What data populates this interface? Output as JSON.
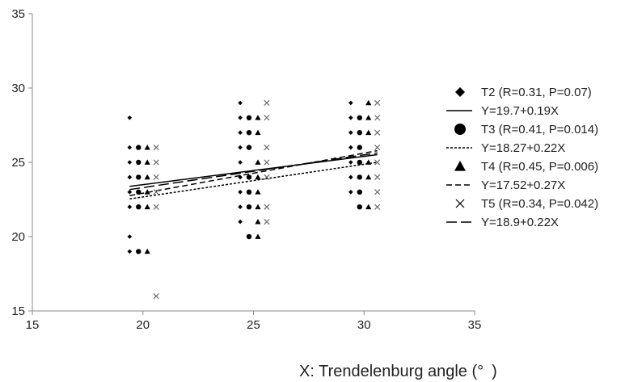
{
  "chart_data": {
    "type": "scatter",
    "title": "",
    "xlabel": "X: Trendelenburg angle (° )",
    "ylabel": "",
    "xlim": [
      15,
      35
    ],
    "ylim": [
      15,
      35
    ],
    "x_ticks": [
      "15",
      "20",
      "25",
      "30",
      "35"
    ],
    "y_ticks": [
      "15",
      "20",
      "25",
      "30",
      "35"
    ],
    "grid": false,
    "legend_position": "right",
    "marker_color": "#000000",
    "x5_marker_color": "#6b6b6b",
    "series": [
      {
        "name": "T2 (R=0.31, P=0.07)",
        "marker": "diamond",
        "x_offset": -0.6,
        "points": [
          [
            20,
            28
          ],
          [
            20,
            26
          ],
          [
            20,
            25
          ],
          [
            20,
            24
          ],
          [
            20,
            23
          ],
          [
            20,
            22
          ],
          [
            20,
            20
          ],
          [
            20,
            19
          ],
          [
            25,
            29
          ],
          [
            25,
            28
          ],
          [
            25,
            27
          ],
          [
            25,
            26
          ],
          [
            25,
            25
          ],
          [
            25,
            24
          ],
          [
            25,
            23
          ],
          [
            25,
            22
          ],
          [
            25,
            21
          ],
          [
            30,
            29
          ],
          [
            30,
            28
          ],
          [
            30,
            27
          ],
          [
            30,
            26
          ],
          [
            30,
            25
          ],
          [
            30,
            24
          ],
          [
            30,
            23
          ]
        ]
      },
      {
        "name": "T3 (R=0.41, P=0.014)",
        "marker": "circle",
        "x_offset": -0.2,
        "points": [
          [
            20,
            26
          ],
          [
            20,
            25
          ],
          [
            20,
            24
          ],
          [
            20,
            23
          ],
          [
            20,
            22
          ],
          [
            20,
            19
          ],
          [
            25,
            28
          ],
          [
            25,
            27
          ],
          [
            25,
            26
          ],
          [
            25,
            24
          ],
          [
            25,
            23
          ],
          [
            25,
            22
          ],
          [
            25,
            20
          ],
          [
            30,
            28
          ],
          [
            30,
            27
          ],
          [
            30,
            26
          ],
          [
            30,
            25
          ],
          [
            30,
            24
          ],
          [
            30,
            23
          ],
          [
            30,
            22
          ]
        ]
      },
      {
        "name": "T4 (R=0.45, P=0.006)",
        "marker": "triangle",
        "x_offset": 0.2,
        "points": [
          [
            20,
            26
          ],
          [
            20,
            25
          ],
          [
            20,
            24
          ],
          [
            20,
            23
          ],
          [
            20,
            22
          ],
          [
            20,
            19
          ],
          [
            25,
            28
          ],
          [
            25,
            27
          ],
          [
            25,
            25
          ],
          [
            25,
            24
          ],
          [
            25,
            23
          ],
          [
            25,
            22
          ],
          [
            25,
            21
          ],
          [
            25,
            20
          ],
          [
            30,
            29
          ],
          [
            30,
            28
          ],
          [
            30,
            27
          ],
          [
            30,
            25
          ],
          [
            30,
            24
          ],
          [
            30,
            22
          ]
        ]
      },
      {
        "name": "T5 (R=0.34, P=0.042)",
        "marker": "x",
        "x_offset": 0.6,
        "points": [
          [
            20,
            26
          ],
          [
            20,
            25
          ],
          [
            20,
            24
          ],
          [
            20,
            23
          ],
          [
            20,
            22
          ],
          [
            20,
            16
          ],
          [
            25,
            29
          ],
          [
            25,
            28
          ],
          [
            25,
            26
          ],
          [
            25,
            25
          ],
          [
            25,
            24
          ],
          [
            25,
            22
          ],
          [
            25,
            21
          ],
          [
            30,
            29
          ],
          [
            30,
            28
          ],
          [
            30,
            27
          ],
          [
            30,
            26
          ],
          [
            30,
            25
          ],
          [
            30,
            24
          ],
          [
            30,
            23
          ],
          [
            30,
            22
          ]
        ]
      }
    ],
    "fits": [
      {
        "label": "Y=19.7+0.19X",
        "intercept": 19.7,
        "slope": 0.19,
        "dash": "solid"
      },
      {
        "label": "Y=18.27+0.22X",
        "intercept": 18.27,
        "slope": 0.22,
        "dash": "dotted"
      },
      {
        "label": "Y=17.52+0.27X",
        "intercept": 17.52,
        "slope": 0.27,
        "dash": "dashed"
      },
      {
        "label": "Y=18.9+0.22X",
        "intercept": 18.9,
        "slope": 0.22,
        "dash": "longdash"
      }
    ],
    "fit_range": [
      19.4,
      30.6
    ]
  }
}
